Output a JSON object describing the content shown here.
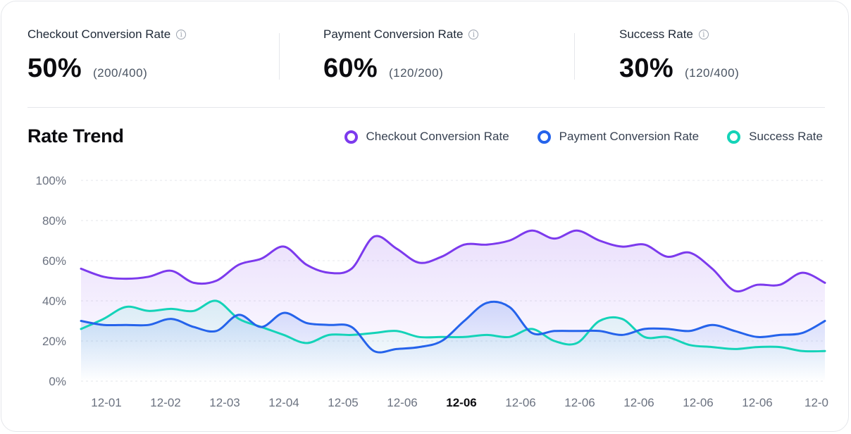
{
  "metrics": [
    {
      "label": "Checkout Conversion Rate",
      "value": "50%",
      "fraction": "(200/400)"
    },
    {
      "label": "Payment Conversion Rate",
      "value": "60%",
      "fraction": "(120/200)"
    },
    {
      "label": "Success Rate",
      "value": "30%",
      "fraction": "(120/400)"
    }
  ],
  "icons": {
    "info": "info-icon",
    "info_glyph": "i"
  },
  "trend": {
    "title": "Rate Trend"
  },
  "chart_data": {
    "type": "line",
    "title": "Rate Trend",
    "ylim": [
      0,
      100
    ],
    "y_ticks": [
      "100%",
      "80%",
      "60%",
      "40%",
      "20%",
      "0%"
    ],
    "y_tick_values": [
      100,
      80,
      60,
      40,
      20,
      0
    ],
    "x_tick_labels": [
      "12-01",
      "12-02",
      "12-03",
      "12-04",
      "12-05",
      "12-06",
      "12-06",
      "12-06",
      "12-06",
      "12-06",
      "12-06",
      "12-06",
      "12-0"
    ],
    "active_tick_index": 6,
    "grid": true,
    "legend_position": "top-right",
    "series": [
      {
        "name": "Checkout Conversion Rate",
        "color": "#7c3aed",
        "values": [
          56,
          52,
          51,
          52,
          55,
          49,
          50,
          58,
          61,
          67,
          58,
          54,
          56,
          72,
          66,
          59,
          62,
          68,
          68,
          70,
          75,
          71,
          75,
          70,
          67,
          68,
          62,
          64,
          56,
          45,
          48,
          48,
          54,
          49
        ]
      },
      {
        "name": "Payment Conversion Rate",
        "color": "#2563eb",
        "values": [
          30,
          28,
          28,
          28,
          31,
          27,
          25,
          33,
          27,
          34,
          29,
          28,
          27,
          15,
          16,
          17,
          20,
          30,
          39,
          37,
          24,
          25,
          25,
          25,
          23,
          26,
          26,
          25,
          28,
          25,
          22,
          23,
          24,
          30
        ]
      },
      {
        "name": "Success Rate",
        "color": "#14d3b8",
        "values": [
          26,
          31,
          37,
          35,
          36,
          35,
          40,
          31,
          27,
          23,
          19,
          23,
          23,
          24,
          25,
          22,
          22,
          22,
          23,
          22,
          26,
          20,
          19,
          30,
          31,
          22,
          22,
          18,
          17,
          16,
          17,
          17,
          15,
          15
        ]
      }
    ]
  }
}
